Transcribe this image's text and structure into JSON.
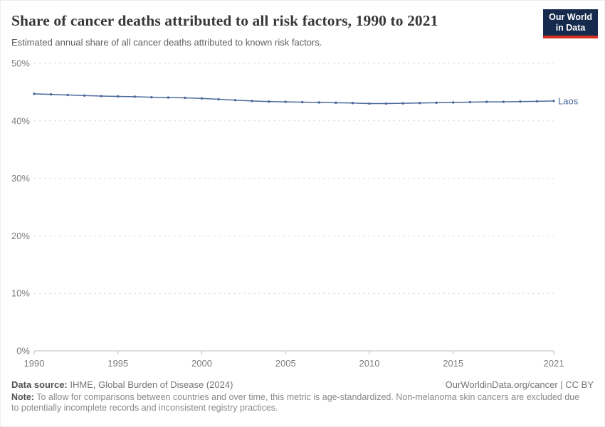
{
  "header": {
    "logo": {
      "line1": "Our World",
      "line2": "in Data",
      "bg_color": "#152a4d",
      "accent_color": "#d3301f"
    }
  },
  "chart_data": {
    "type": "line",
    "title": "Share of cancer deaths attributed to all risk factors, 1990 to 2021",
    "subtitle": "Estimated annual share of all cancer deaths attributed to known risk factors.",
    "xlabel": "",
    "ylabel": "",
    "xlim": [
      1990,
      2021
    ],
    "ylim": [
      0,
      50
    ],
    "x_ticks": [
      1990,
      1995,
      2000,
      2005,
      2010,
      2015,
      2021
    ],
    "y_ticks": [
      0,
      10,
      20,
      30,
      40,
      50
    ],
    "y_tick_labels": [
      "0%",
      "10%",
      "20%",
      "30%",
      "40%",
      "50%"
    ],
    "grid": "horizontal-dashed",
    "legend_position": "end-of-line-label",
    "series": [
      {
        "name": "Laos",
        "color": "#4c6a9c",
        "x": [
          1990,
          1991,
          1992,
          1993,
          1994,
          1995,
          1996,
          1997,
          1998,
          1999,
          2000,
          2001,
          2002,
          2003,
          2004,
          2005,
          2006,
          2007,
          2008,
          2009,
          2010,
          2011,
          2012,
          2013,
          2014,
          2015,
          2016,
          2017,
          2018,
          2019,
          2020,
          2021
        ],
        "values": [
          44.7,
          44.6,
          44.5,
          44.4,
          44.3,
          44.25,
          44.2,
          44.1,
          44.05,
          44.0,
          43.9,
          43.75,
          43.6,
          43.45,
          43.35,
          43.3,
          43.25,
          43.2,
          43.15,
          43.1,
          43.0,
          43.0,
          43.05,
          43.1,
          43.15,
          43.2,
          43.25,
          43.3,
          43.3,
          43.35,
          43.4,
          43.45
        ]
      }
    ]
  },
  "footer": {
    "source_label": "Data source:",
    "source_text": " IHME, Global Burden of Disease (2024)",
    "link_text": "OurWorldinData.org/cancer | CC BY",
    "note_label": "Note:",
    "note_text": " To allow for comparisons between countries and over time, this metric is age-standardized. Non-melanoma skin cancers are excluded due to potentially incomplete records and inconsistent registry practices."
  }
}
